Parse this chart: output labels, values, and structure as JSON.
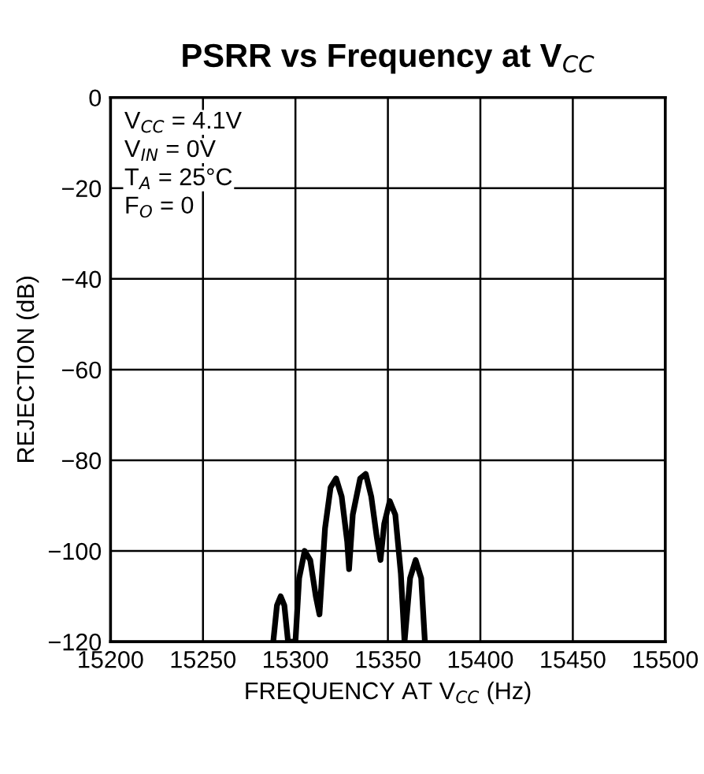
{
  "chart_data": {
    "type": "line",
    "title": "PSRR vs Frequency at V$_{CC}$",
    "xlabel": "FREQUENCY AT V$_{CC}$ (Hz)",
    "ylabel": "REJECTION (dB)",
    "annotations": [
      "V$_{CC}$ = 4.1V",
      "V$_{IN}$ = 0V",
      "T$_{A}$ = 25°C",
      "F$_{O}$ = 0"
    ],
    "x": [
      15288,
      15290,
      15292,
      15294,
      15296,
      15300,
      15302,
      15305,
      15308,
      15311,
      15313,
      15316,
      15319,
      15322,
      15325,
      15328,
      15329,
      15331,
      15335,
      15338,
      15341,
      15344,
      15346,
      15348,
      15351,
      15354,
      15357,
      15359,
      15362,
      15365,
      15368,
      15370
    ],
    "series": [
      {
        "color": "#000000",
        "values": [
          -120,
          -112,
          -110,
          -112,
          -120,
          -120,
          -106,
          -100,
          -102,
          -110,
          -114,
          -95,
          -86,
          -84,
          -88,
          -98,
          -104,
          -92,
          -84,
          -83,
          -88,
          -97,
          -102,
          -94,
          -89,
          -92,
          -105,
          -120,
          -106,
          -102,
          -106,
          -120
        ]
      }
    ],
    "xlim": [
      15200,
      15500
    ],
    "ylim": [
      -120,
      0
    ],
    "xticks": [
      15200,
      15250,
      15300,
      15350,
      15400,
      15450,
      15500
    ],
    "yticks": [
      {
        "value": -120,
        "label": "−120"
      },
      {
        "value": -100,
        "label": "−100"
      },
      {
        "value": -80,
        "label": "−80"
      },
      {
        "value": -60,
        "label": "−60"
      },
      {
        "value": -40,
        "label": "−40"
      },
      {
        "value": -20,
        "label": "−20"
      },
      0
    ],
    "grid": true,
    "marker": "none",
    "line_style": "solid"
  }
}
